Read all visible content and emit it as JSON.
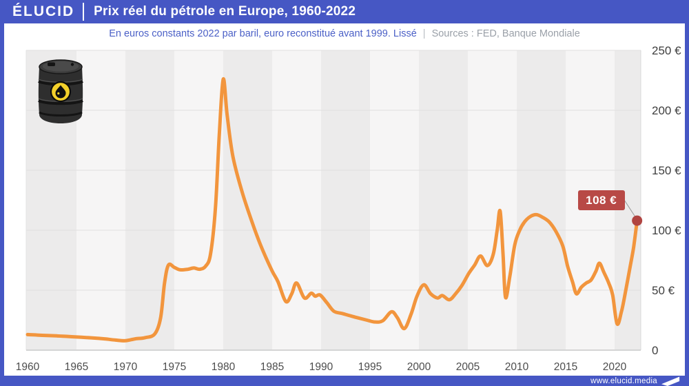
{
  "header": {
    "logo": "ÉLUCID",
    "title": "Prix réel du pétrole en Europe, 1960-2022"
  },
  "subtitle": {
    "text": "En euros constants 2022 par baril, euro reconstitué avant 1999. Lissé",
    "separator": "|",
    "sources": "Sources : FED, Banque Mondiale"
  },
  "annotation": {
    "label": "108 €"
  },
  "footer": {
    "url": "www.elucid.media"
  },
  "colors": {
    "brand_blue": "#4657c4",
    "line_orange": "#f2953d",
    "badge_red": "#b84946",
    "dot_red": "#b04441",
    "band_dark": "#ecebeb",
    "band_light": "#f6f5f5",
    "grid_gray": "#e0dfdf",
    "axis_gray": "#c9c9c9"
  },
  "chart_data": {
    "type": "line",
    "title": "Prix réel du pétrole en Europe, 1960-2022",
    "ylabel": "euros constants 2022 par baril",
    "xlabel": "",
    "xlim": [
      1959.85,
      2022.7
    ],
    "ylim": [
      0,
      250
    ],
    "grid": "horizontal",
    "background": "alternating 5-year vertical bands",
    "x_ticks": [
      1960,
      1965,
      1970,
      1975,
      1980,
      1985,
      1990,
      1995,
      2000,
      2005,
      2010,
      2015,
      2020
    ],
    "y_ticks": [
      0,
      50,
      100,
      150,
      200,
      250
    ],
    "y_tick_labels": [
      "0",
      "50 €",
      "100 €",
      "150 €",
      "200 €",
      "250 €"
    ],
    "legend": "none",
    "series": [
      {
        "name": "Prix réel du pétrole (euros constants 2022 / baril)",
        "points": [
          [
            1960,
            13
          ],
          [
            1961,
            12.6
          ],
          [
            1962,
            12.2
          ],
          [
            1963,
            11.9
          ],
          [
            1964,
            11.5
          ],
          [
            1965,
            11
          ],
          [
            1966,
            10.5
          ],
          [
            1967,
            10
          ],
          [
            1968,
            9.3
          ],
          [
            1969,
            8.4
          ],
          [
            1970,
            7.9
          ],
          [
            1971,
            9.4
          ],
          [
            1972,
            10.4
          ],
          [
            1973,
            13.5
          ],
          [
            1973.6,
            27
          ],
          [
            1974,
            56
          ],
          [
            1974.4,
            71
          ],
          [
            1975,
            69
          ],
          [
            1975.6,
            67
          ],
          [
            1976.4,
            67.5
          ],
          [
            1977,
            68.5
          ],
          [
            1977.6,
            67.5
          ],
          [
            1978.2,
            70
          ],
          [
            1978.7,
            80
          ],
          [
            1979.2,
            118
          ],
          [
            1979.6,
            180
          ],
          [
            1980,
            226
          ],
          [
            1980.4,
            196
          ],
          [
            1981,
            161
          ],
          [
            1982,
            130
          ],
          [
            1983.2,
            101
          ],
          [
            1984,
            84
          ],
          [
            1985,
            66
          ],
          [
            1985.6,
            57
          ],
          [
            1986.4,
            40.5
          ],
          [
            1987,
            47
          ],
          [
            1987.5,
            56
          ],
          [
            1988.3,
            43.5
          ],
          [
            1989,
            47.5
          ],
          [
            1989.4,
            45
          ],
          [
            1989.9,
            46
          ],
          [
            1990.6,
            39.5
          ],
          [
            1991.3,
            32.5
          ],
          [
            1992.2,
            30.5
          ],
          [
            1993.5,
            27.5
          ],
          [
            1994.7,
            25
          ],
          [
            1995.5,
            23.5
          ],
          [
            1996.3,
            24.5
          ],
          [
            1997.2,
            32
          ],
          [
            1997.8,
            27
          ],
          [
            1998.5,
            18
          ],
          [
            1999.2,
            30
          ],
          [
            1999.8,
            45
          ],
          [
            2000.5,
            54.5
          ],
          [
            2001.2,
            47
          ],
          [
            2001.9,
            43.5
          ],
          [
            2002.4,
            45.5
          ],
          [
            2003.1,
            42
          ],
          [
            2003.7,
            46.5
          ],
          [
            2004.4,
            54
          ],
          [
            2005.1,
            64
          ],
          [
            2005.7,
            71
          ],
          [
            2006.3,
            78.5
          ],
          [
            2007,
            70.5
          ],
          [
            2007.6,
            80
          ],
          [
            2008,
            100
          ],
          [
            2008.3,
            116
          ],
          [
            2008.6,
            80
          ],
          [
            2008.85,
            44
          ],
          [
            2009.3,
            62
          ],
          [
            2009.8,
            88
          ],
          [
            2010.3,
            100
          ],
          [
            2010.8,
            107
          ],
          [
            2011.4,
            111.5
          ],
          [
            2012,
            113
          ],
          [
            2012.6,
            111
          ],
          [
            2013.3,
            107
          ],
          [
            2014,
            99
          ],
          [
            2014.7,
            87
          ],
          [
            2015.2,
            70
          ],
          [
            2015.7,
            57
          ],
          [
            2016.1,
            47
          ],
          [
            2016.6,
            52.5
          ],
          [
            2017.1,
            56
          ],
          [
            2017.6,
            58.5
          ],
          [
            2018.1,
            66
          ],
          [
            2018.45,
            72.5
          ],
          [
            2018.9,
            65
          ],
          [
            2019.4,
            56
          ],
          [
            2019.8,
            46
          ],
          [
            2020.25,
            22
          ],
          [
            2020.7,
            32
          ],
          [
            2021.1,
            48
          ],
          [
            2021.6,
            70
          ],
          [
            2021.95,
            86
          ],
          [
            2022.3,
            108
          ]
        ]
      }
    ],
    "end_point": {
      "year": 2022.3,
      "value": 108,
      "label": "108 €"
    }
  }
}
